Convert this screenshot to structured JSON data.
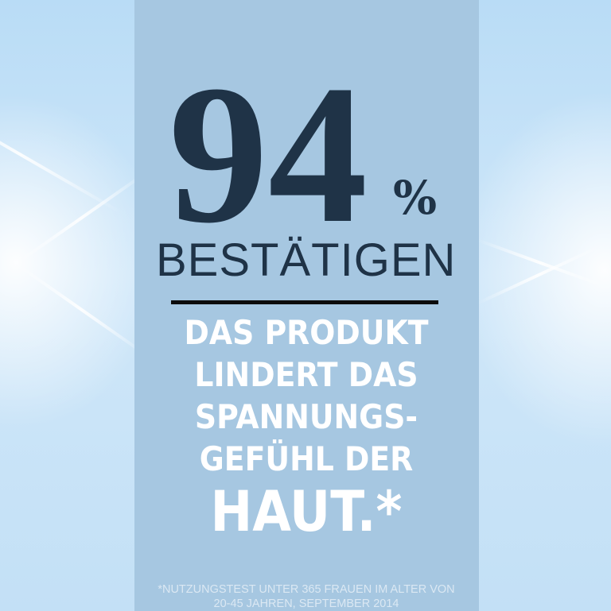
{
  "headline": {
    "number": "94",
    "unit": "%",
    "verb": "BESTÄTIGEN"
  },
  "claim": {
    "lines": [
      "DAS PRODUKT",
      "LINDERT DAS",
      "SPANNUNGS-",
      "GEFÜHL DER",
      "HAUT.*"
    ]
  },
  "footnote": {
    "lines": [
      "*NUTZUNGSTEST UNTER 365 FRAUEN IM ALTER VON",
      "20-45 JAHREN, SEPTEMBER 2014"
    ]
  },
  "colors": {
    "panel": "#a6c7e1",
    "number": "#1f3347",
    "claim": "#ffffff",
    "background": "#c3e0f6"
  }
}
